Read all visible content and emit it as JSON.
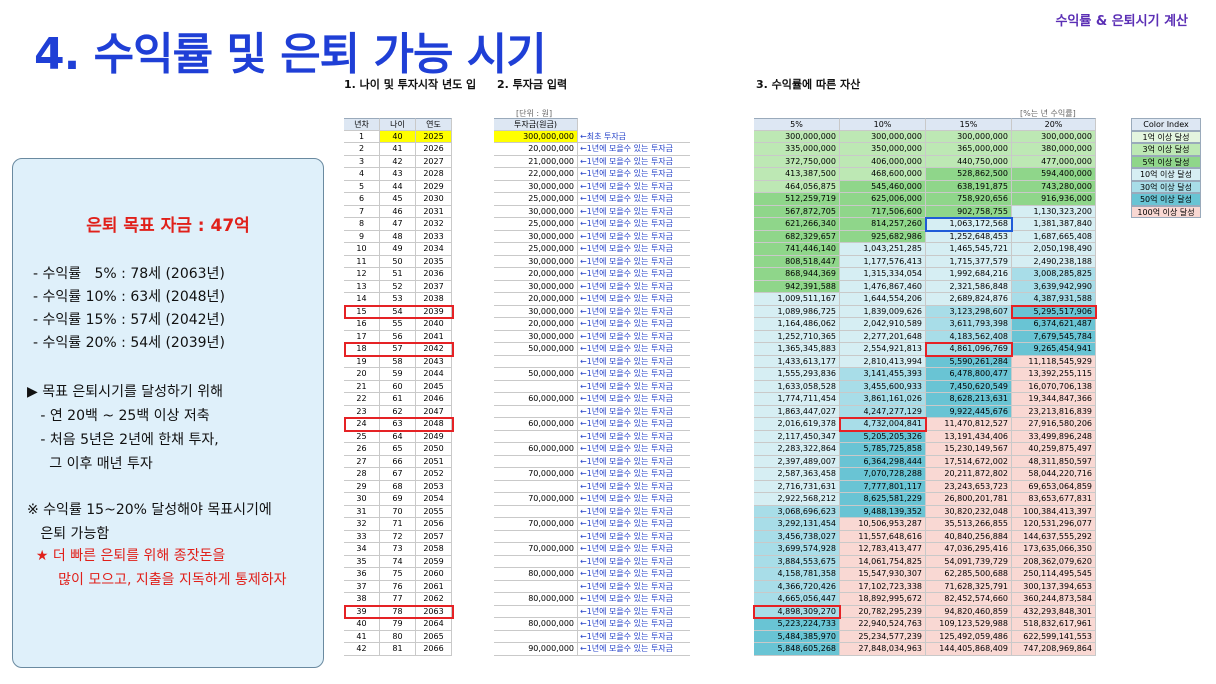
{
  "header": {
    "top_right": "수익률 & 은퇴시기 계산",
    "title": "4. 수익률 및 은퇴 가능 시기"
  },
  "sections": {
    "s1": "1. 나이 및 투자시작 년도 입",
    "s2": "2. 투자금 입력",
    "s3": "3. 수익률에 따른 자산"
  },
  "units": {
    "won": "[단위 : 원]",
    "rate": "[%는 년 수익률]"
  },
  "panel": {
    "goal": "은퇴 목표 자금 : 47억",
    "rates": [
      "- 수익률   5% : 78세 (2063년)",
      "- 수익률 10% : 63세 (2048년)",
      "- 수익률 15% : 57세 (2042년)",
      "- 수익률 20% : 54세 (2039년)"
    ],
    "notes": [
      {
        "text": "▶ 목표 은퇴시기를 달성하기 위해",
        "red": false
      },
      {
        "text": "   - 연 20백 ~ 25백 이상 저축",
        "red": false
      },
      {
        "text": "   - 처음 5년은 2년에 한채 투자,",
        "red": false
      },
      {
        "text": "     그 이후 매년 투자",
        "red": false
      },
      {
        "text": "※ 수익률 15~20% 달성해야 목표시기에",
        "red": false
      },
      {
        "text": "   은퇴 가능함",
        "red": false
      },
      {
        "text": "  ★ 더 빠른 은퇴를 위해 종잣돈을",
        "red": true
      },
      {
        "text": "       많이 모으고, 지출을 지독하게 통제하자",
        "red": true
      }
    ]
  },
  "table": {
    "headers": {
      "year": "년차",
      "age": "나이",
      "ydate": "연도",
      "invest": "투자금(원금)",
      "r5": "5%",
      "r10": "10%",
      "r15": "15%",
      "r20": "20%"
    },
    "first_note": "←최초 투자금",
    "note": "←1년에 모을수 있는 투자금",
    "rows": [
      [
        "1",
        "40",
        "2025",
        "300,000,000",
        "300,000,000",
        "300,000,000",
        "300,000,000",
        "300,000,000"
      ],
      [
        "2",
        "41",
        "2026",
        "20,000,000",
        "335,000,000",
        "350,000,000",
        "365,000,000",
        "380,000,000"
      ],
      [
        "3",
        "42",
        "2027",
        "21,000,000",
        "372,750,000",
        "406,000,000",
        "440,750,000",
        "477,000,000"
      ],
      [
        "4",
        "43",
        "2028",
        "22,000,000",
        "413,387,500",
        "468,600,000",
        "528,862,500",
        "594,400,000"
      ],
      [
        "5",
        "44",
        "2029",
        "30,000,000",
        "464,056,875",
        "545,460,000",
        "638,191,875",
        "743,280,000"
      ],
      [
        "6",
        "45",
        "2030",
        "25,000,000",
        "512,259,719",
        "625,006,000",
        "758,920,656",
        "916,936,000"
      ],
      [
        "7",
        "46",
        "2031",
        "30,000,000",
        "567,872,705",
        "717,506,600",
        "902,758,755",
        "1,130,323,200"
      ],
      [
        "8",
        "47",
        "2032",
        "25,000,000",
        "621,266,340",
        "814,257,260",
        "1,063,172,568",
        "1,381,387,840"
      ],
      [
        "9",
        "48",
        "2033",
        "30,000,000",
        "682,329,657",
        "925,682,986",
        "1,252,648,453",
        "1,687,665,408"
      ],
      [
        "10",
        "49",
        "2034",
        "25,000,000",
        "741,446,140",
        "1,043,251,285",
        "1,465,545,721",
        "2,050,198,490"
      ],
      [
        "11",
        "50",
        "2035",
        "30,000,000",
        "808,518,447",
        "1,177,576,413",
        "1,715,377,579",
        "2,490,238,188"
      ],
      [
        "12",
        "51",
        "2036",
        "20,000,000",
        "868,944,369",
        "1,315,334,054",
        "1,992,684,216",
        "3,008,285,825"
      ],
      [
        "13",
        "52",
        "2037",
        "30,000,000",
        "942,391,588",
        "1,476,867,460",
        "2,321,586,848",
        "3,639,942,990"
      ],
      [
        "14",
        "53",
        "2038",
        "20,000,000",
        "1,009,511,167",
        "1,644,554,206",
        "2,689,824,876",
        "4,387,931,588"
      ],
      [
        "15",
        "54",
        "2039",
        "30,000,000",
        "1,089,986,725",
        "1,839,009,626",
        "3,123,298,607",
        "5,295,517,906"
      ],
      [
        "16",
        "55",
        "2040",
        "20,000,000",
        "1,164,486,062",
        "2,042,910,589",
        "3,611,793,398",
        "6,374,621,487"
      ],
      [
        "17",
        "56",
        "2041",
        "30,000,000",
        "1,252,710,365",
        "2,277,201,648",
        "4,183,562,408",
        "7,679,545,784"
      ],
      [
        "18",
        "57",
        "2042",
        "50,000,000",
        "1,365,345,883",
        "2,554,921,813",
        "4,861,096,769",
        "9,265,454,941"
      ],
      [
        "19",
        "58",
        "2043",
        "",
        "1,433,613,177",
        "2,810,413,994",
        "5,590,261,284",
        "11,118,545,929"
      ],
      [
        "20",
        "59",
        "2044",
        "50,000,000",
        "1,555,293,836",
        "3,141,455,393",
        "6,478,800,477",
        "13,392,255,115"
      ],
      [
        "21",
        "60",
        "2045",
        "",
        "1,633,058,528",
        "3,455,600,933",
        "7,450,620,549",
        "16,070,706,138"
      ],
      [
        "22",
        "61",
        "2046",
        "60,000,000",
        "1,774,711,454",
        "3,861,161,026",
        "8,628,213,631",
        "19,344,847,366"
      ],
      [
        "23",
        "62",
        "2047",
        "",
        "1,863,447,027",
        "4,247,277,129",
        "9,922,445,676",
        "23,213,816,839"
      ],
      [
        "24",
        "63",
        "2048",
        "60,000,000",
        "2,016,619,378",
        "4,732,004,841",
        "11,470,812,527",
        "27,916,580,206"
      ],
      [
        "25",
        "64",
        "2049",
        "",
        "2,117,450,347",
        "5,205,205,326",
        "13,191,434,406",
        "33,499,896,248"
      ],
      [
        "26",
        "65",
        "2050",
        "60,000,000",
        "2,283,322,864",
        "5,785,725,858",
        "15,230,149,567",
        "40,259,875,497"
      ],
      [
        "27",
        "66",
        "2051",
        "",
        "2,397,489,007",
        "6,364,298,444",
        "17,514,672,002",
        "48,311,850,597"
      ],
      [
        "28",
        "67",
        "2052",
        "70,000,000",
        "2,587,363,458",
        "7,070,728,288",
        "20,211,872,802",
        "58,044,220,716"
      ],
      [
        "29",
        "68",
        "2053",
        "",
        "2,716,731,631",
        "7,777,801,117",
        "23,243,653,723",
        "69,653,064,859"
      ],
      [
        "30",
        "69",
        "2054",
        "70,000,000",
        "2,922,568,212",
        "8,625,581,229",
        "26,800,201,781",
        "83,653,677,831"
      ],
      [
        "31",
        "70",
        "2055",
        "",
        "3,068,696,623",
        "9,488,139,352",
        "30,820,232,048",
        "100,384,413,397"
      ],
      [
        "32",
        "71",
        "2056",
        "70,000,000",
        "3,292,131,454",
        "10,506,953,287",
        "35,513,266,855",
        "120,531,296,077"
      ],
      [
        "33",
        "72",
        "2057",
        "",
        "3,456,738,027",
        "11,557,648,616",
        "40,840,256,884",
        "144,637,555,292"
      ],
      [
        "34",
        "73",
        "2058",
        "70,000,000",
        "3,699,574,928",
        "12,783,413,477",
        "47,036,295,416",
        "173,635,066,350"
      ],
      [
        "35",
        "74",
        "2059",
        "",
        "3,884,553,675",
        "14,061,754,825",
        "54,091,739,729",
        "208,362,079,620"
      ],
      [
        "36",
        "75",
        "2060",
        "80,000,000",
        "4,158,781,358",
        "15,547,930,307",
        "62,285,500,688",
        "250,114,495,545"
      ],
      [
        "37",
        "76",
        "2061",
        "",
        "4,366,720,426",
        "17,102,723,338",
        "71,628,325,791",
        "300,137,394,653"
      ],
      [
        "38",
        "77",
        "2062",
        "80,000,000",
        "4,665,056,447",
        "18,892,995,672",
        "82,452,574,660",
        "360,244,873,584"
      ],
      [
        "39",
        "78",
        "2063",
        "",
        "4,898,309,270",
        "20,782,295,239",
        "94,820,460,859",
        "432,293,848,301"
      ],
      [
        "40",
        "79",
        "2064",
        "80,000,000",
        "5,223,224,733",
        "22,940,524,763",
        "109,123,529,988",
        "518,832,617,961"
      ],
      [
        "41",
        "80",
        "2065",
        "",
        "5,484,385,970",
        "25,234,577,239",
        "125,492,059,486",
        "622,599,141,553"
      ],
      [
        "42",
        "81",
        "2066",
        "90,000,000",
        "5,848,605,268",
        "27,848,034,963",
        "144,405,868,409",
        "747,208,969,864"
      ]
    ]
  },
  "color_index": {
    "title": "Color Index",
    "items": [
      {
        "label": "1억 이상 달성",
        "color": "#e4f5df"
      },
      {
        "label": "3억 이상 달성",
        "color": "#bde8b4"
      },
      {
        "label": "5억 이상 달성",
        "color": "#8fd68a"
      },
      {
        "label": "10억 이상 달성",
        "color": "#d6eef3"
      },
      {
        "label": "30억 이상 달성",
        "color": "#a8dde8"
      },
      {
        "label": "50억 이상 달성",
        "color": "#69c4d4"
      },
      {
        "label": "100억 이상 달성",
        "color": "#f9d8d3"
      }
    ]
  },
  "highlights": {
    "red_rows": [
      "15",
      "18",
      "24",
      "39"
    ],
    "red_cells": [
      [
        "15",
        "r20"
      ],
      [
        "18",
        "r15"
      ],
      [
        "24",
        "r10"
      ],
      [
        "39",
        "r5"
      ]
    ],
    "blue_cells": [
      [
        "8",
        "r15"
      ]
    ],
    "yellow": "#ffff00",
    "red": "#e52225",
    "blue": "#1f5bd8"
  }
}
